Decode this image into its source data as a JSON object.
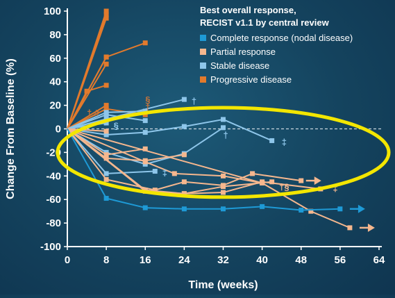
{
  "chart_data": {
    "type": "line",
    "title": "",
    "xlabel": "Time (weeks)",
    "ylabel": "Change From Baseline (%)",
    "xlim": [
      0,
      64
    ],
    "ylim": [
      -100,
      100
    ],
    "xticks": [
      0,
      8,
      16,
      24,
      32,
      40,
      48,
      56,
      64
    ],
    "yticks": [
      100,
      80,
      60,
      40,
      20,
      0,
      -20,
      -40,
      -60,
      -80,
      -100
    ],
    "reference_line": 0,
    "grid": false,
    "legend": {
      "title_lines": [
        "Best overall response,",
        "RECIST v1.1 by central review"
      ],
      "position": "top-right",
      "entries": [
        {
          "label": "Complete response (nodal disease)",
          "color": "#1e9ad6"
        },
        {
          "label": "Partial response",
          "color": "#f5b78e"
        },
        {
          "label": "Stable disease",
          "color": "#8ec6ea"
        },
        {
          "label": "Progressive disease",
          "color": "#e27a2c"
        }
      ]
    },
    "series": [
      {
        "category": "Progressive disease",
        "color": "#e27a2c",
        "x": [
          0,
          8
        ],
        "y": [
          0,
          100
        ]
      },
      {
        "category": "Progressive disease",
        "color": "#e27a2c",
        "x": [
          0,
          8
        ],
        "y": [
          0,
          97
        ]
      },
      {
        "category": "Progressive disease",
        "color": "#e27a2c",
        "x": [
          0,
          8
        ],
        "y": [
          0,
          94
        ]
      },
      {
        "category": "Progressive disease",
        "color": "#e27a2c",
        "x": [
          0,
          8
        ],
        "y": [
          0,
          61
        ]
      },
      {
        "category": "Progressive disease",
        "color": "#e27a2c",
        "x": [
          0,
          8
        ],
        "y": [
          0,
          55
        ]
      },
      {
        "category": "Progressive disease",
        "color": "#e27a2c",
        "x": [
          0,
          4,
          8
        ],
        "y": [
          0,
          32,
          37
        ]
      },
      {
        "category": "Progressive disease",
        "color": "#e27a2c",
        "x": [
          0,
          8,
          16
        ],
        "y": [
          0,
          61,
          73
        ]
      },
      {
        "category": "Progressive disease",
        "color": "#e27a2c",
        "x": [
          0,
          8
        ],
        "y": [
          0,
          20
        ]
      },
      {
        "category": "Progressive disease",
        "color": "#e27a2c",
        "x": [
          0,
          8,
          16
        ],
        "y": [
          0,
          17,
          12
        ]
      },
      {
        "category": "Stable disease",
        "color": "#8ec6ea",
        "x": [
          0,
          8,
          16
        ],
        "y": [
          0,
          14,
          15
        ]
      },
      {
        "category": "Stable disease",
        "color": "#8ec6ea",
        "x": [
          0,
          8,
          16
        ],
        "y": [
          0,
          12,
          7
        ]
      },
      {
        "category": "Stable disease",
        "color": "#8ec6ea",
        "x": [
          0,
          8
        ],
        "y": [
          0,
          8
        ]
      },
      {
        "category": "Stable disease",
        "color": "#8ec6ea",
        "x": [
          0,
          24
        ],
        "y": [
          0,
          25
        ]
      },
      {
        "category": "Stable disease",
        "color": "#8ec6ea",
        "x": [
          0,
          8
        ],
        "y": [
          0,
          5
        ]
      },
      {
        "category": "Stable disease",
        "color": "#8ec6ea",
        "x": [
          0,
          8,
          16,
          24,
          32,
          42
        ],
        "y": [
          0,
          -5,
          -3,
          2,
          8,
          -10
        ]
      },
      {
        "category": "Stable disease",
        "color": "#8ec6ea",
        "x": [
          0,
          8,
          16,
          24,
          32
        ],
        "y": [
          0,
          -20,
          -30,
          -21,
          1
        ]
      },
      {
        "category": "Stable disease",
        "color": "#8ec6ea",
        "x": [
          0,
          8,
          18
        ],
        "y": [
          0,
          -38,
          -36
        ]
      },
      {
        "category": "Partial response",
        "color": "#f5b78e",
        "x": [
          0,
          8
        ],
        "y": [
          0,
          -2
        ]
      },
      {
        "category": "Partial response",
        "color": "#f5b78e",
        "x": [
          0,
          8,
          16
        ],
        "y": [
          0,
          -22,
          -17
        ]
      },
      {
        "category": "Partial response",
        "color": "#f5b78e",
        "x": [
          0,
          8,
          16,
          24
        ],
        "y": [
          0,
          -25,
          -27,
          -22
        ]
      },
      {
        "category": "Partial response",
        "color": "#f5b78e",
        "x": [
          0,
          16,
          22,
          32,
          40
        ],
        "y": [
          0,
          -28,
          -38,
          -40,
          -46
        ]
      },
      {
        "category": "Partial response",
        "color": "#f5b78e",
        "x": [
          0,
          8,
          18,
          24,
          32,
          38,
          48
        ],
        "y": [
          0,
          -43,
          -52,
          -45,
          -48,
          -38,
          -44
        ]
      },
      {
        "category": "Partial response",
        "color": "#f5b78e",
        "x": [
          0,
          16,
          24,
          32,
          42
        ],
        "y": [
          0,
          -53,
          -55,
          -49,
          -45
        ]
      },
      {
        "category": "Partial response",
        "color": "#f5b78e",
        "x": [
          0,
          16,
          24,
          32,
          40,
          52
        ],
        "y": [
          0,
          -52,
          -55,
          -54,
          -45,
          -51
        ]
      },
      {
        "category": "Partial response",
        "color": "#f5b78e",
        "x": [
          0,
          40,
          50,
          58
        ],
        "y": [
          0,
          -46,
          -70,
          -84
        ]
      },
      {
        "category": "Complete response (nodal disease)",
        "color": "#1e9ad6",
        "x": [
          0,
          8,
          16,
          24,
          32,
          40,
          48,
          56
        ],
        "y": [
          0,
          -59,
          -67,
          -68,
          -68,
          -66,
          -69,
          -68
        ]
      }
    ],
    "arrows": [
      {
        "x": 49,
        "y": -44,
        "color": "#f5b78e"
      },
      {
        "x": 58,
        "y": -68,
        "color": "#1e9ad6"
      },
      {
        "x": 60,
        "y": -84,
        "color": "#f5b78e"
      }
    ],
    "annotations": [
      {
        "text": "§",
        "x": 16,
        "y": 25,
        "color": "#c8743a"
      },
      {
        "text": "†",
        "x": 16,
        "y": 19,
        "color": "#c8743a"
      },
      {
        "text": "†",
        "x": 4,
        "y": 14,
        "color": "#c8743a"
      },
      {
        "text": "#",
        "x": 5.5,
        "y": 14,
        "color": "#c8743a"
      },
      {
        "text": "§",
        "x": 9.5,
        "y": 3,
        "color": "#8ec6ea"
      },
      {
        "text": "†",
        "x": 25.5,
        "y": 24,
        "color": "#8ec6ea"
      },
      {
        "text": "†",
        "x": 32,
        "y": -5,
        "color": "#8ec6ea"
      },
      {
        "text": "‡",
        "x": 44,
        "y": -11,
        "color": "#8ec6ea"
      },
      {
        "text": "‡",
        "x": 19.5,
        "y": -37,
        "color": "#8ec6ea"
      },
      {
        "text": "†§",
        "x": 43.5,
        "y": -49,
        "color": "#f5b78e"
      },
      {
        "text": "‡",
        "x": 54.5,
        "y": -50,
        "color": "#f5b78e"
      }
    ],
    "highlight": {
      "shape": "ellipse",
      "color": "#f3e600",
      "center": [
        32,
        -20
      ],
      "radius": [
        34,
        38
      ]
    }
  }
}
